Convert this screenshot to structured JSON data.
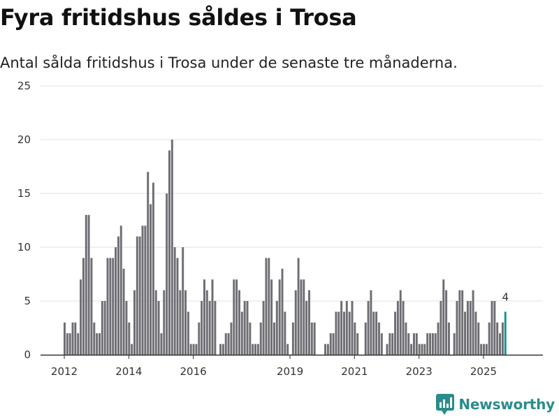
{
  "brand": {
    "name": "Newsworthy",
    "color": "#2a8c8c"
  },
  "colors": {
    "bar": "#6e6d73",
    "highlight": "#129490",
    "grid": "#e0e0e0",
    "axis": "#333333"
  },
  "chart_data": {
    "type": "bar",
    "title": "Fyra fritidshus såldes i Trosa",
    "subtitle": "Antal sålda fritidshus i Trosa under de senaste tre månaderna.",
    "xlabel": "",
    "ylabel": "",
    "ylim": [
      0,
      25
    ],
    "yticks": [
      0,
      5,
      10,
      15,
      20,
      25
    ],
    "x_start": "2012-01",
    "xticks": [
      {
        "label": "2012",
        "index": 0
      },
      {
        "label": "2014",
        "index": 24
      },
      {
        "label": "2016",
        "index": 48
      },
      {
        "label": "2019",
        "index": 84
      },
      {
        "label": "2021",
        "index": 108
      },
      {
        "label": "2023",
        "index": 132
      },
      {
        "label": "2025",
        "index": 156
      }
    ],
    "values": [
      3,
      2,
      2,
      3,
      3,
      2,
      7,
      9,
      13,
      13,
      9,
      3,
      2,
      2,
      5,
      5,
      9,
      9,
      9,
      10,
      11,
      12,
      8,
      5,
      3,
      1,
      6,
      11,
      11,
      12,
      12,
      17,
      14,
      16,
      6,
      5,
      2,
      6,
      15,
      19,
      20,
      10,
      9,
      6,
      10,
      6,
      4,
      1,
      1,
      1,
      3,
      5,
      7,
      6,
      5,
      7,
      5,
      0,
      1,
      1,
      2,
      2,
      3,
      7,
      7,
      6,
      4,
      5,
      5,
      3,
      1,
      1,
      1,
      3,
      5,
      9,
      9,
      7,
      3,
      5,
      7,
      8,
      4,
      1,
      0,
      3,
      6,
      9,
      7,
      7,
      5,
      6,
      3,
      3,
      0,
      0,
      0,
      1,
      1,
      2,
      2,
      4,
      4,
      5,
      4,
      5,
      4,
      5,
      3,
      2,
      0,
      0,
      3,
      5,
      6,
      4,
      4,
      3,
      2,
      0,
      1,
      2,
      2,
      4,
      5,
      6,
      5,
      3,
      2,
      1,
      2,
      2,
      1,
      1,
      1,
      2,
      2,
      2,
      2,
      3,
      5,
      7,
      6,
      3,
      0,
      2,
      5,
      6,
      6,
      4,
      5,
      5,
      6,
      4,
      3,
      1,
      1,
      1,
      3,
      5,
      5,
      3,
      2,
      3,
      4
    ],
    "highlight_index": 164,
    "highlight_label": "4"
  }
}
